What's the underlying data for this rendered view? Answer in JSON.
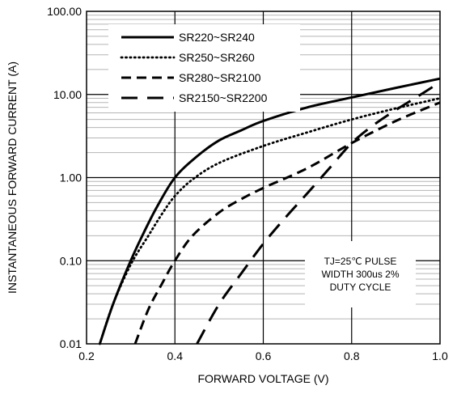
{
  "chart_data": {
    "type": "line",
    "title": "",
    "xlabel": "FORWARD VOLTAGE (V)",
    "ylabel": "INSTANTANEOUS FORWARD CURRENT (A)",
    "xlim": [
      0.2,
      1.0
    ],
    "ylim": [
      0.01,
      100
    ],
    "y_scale": "log",
    "grid": true,
    "x_ticks": [
      "0.2",
      "0.4",
      "0.6",
      "0.8",
      "1.0"
    ],
    "y_ticks": [
      "0.01",
      "0.10",
      "1.00",
      "10.00",
      "100.00"
    ],
    "legend_position": "top-left",
    "series": [
      {
        "name": "SR220~SR240",
        "style": "solid",
        "x": [
          0.23,
          0.26,
          0.3,
          0.33,
          0.36,
          0.4,
          0.45,
          0.5,
          0.55,
          0.6,
          0.7,
          0.8,
          0.9,
          1.0
        ],
        "y": [
          0.01,
          0.03,
          0.1,
          0.22,
          0.45,
          1.0,
          1.8,
          2.8,
          3.7,
          4.8,
          7.0,
          9.2,
          12.0,
          15.5
        ]
      },
      {
        "name": "SR250~SR260",
        "style": "dotted",
        "x": [
          0.23,
          0.26,
          0.3,
          0.34,
          0.37,
          0.4,
          0.44,
          0.5,
          0.6,
          0.7,
          0.8,
          0.9,
          1.0
        ],
        "y": [
          0.01,
          0.03,
          0.09,
          0.2,
          0.36,
          0.6,
          0.95,
          1.5,
          2.4,
          3.5,
          5.0,
          6.8,
          9.0
        ]
      },
      {
        "name": "SR280~SR2100",
        "style": "dashed",
        "x": [
          0.31,
          0.34,
          0.37,
          0.4,
          0.44,
          0.5,
          0.55,
          0.6,
          0.7,
          0.8,
          0.9,
          1.0
        ],
        "y": [
          0.01,
          0.026,
          0.052,
          0.1,
          0.2,
          0.38,
          0.55,
          0.75,
          1.3,
          2.6,
          4.8,
          8.0
        ]
      },
      {
        "name": "SR2150~SR2200",
        "style": "long-dashed",
        "x": [
          0.45,
          0.5,
          0.55,
          0.6,
          0.65,
          0.7,
          0.75,
          0.8,
          0.85,
          0.9,
          0.95,
          1.0
        ],
        "y": [
          0.01,
          0.03,
          0.07,
          0.16,
          0.33,
          0.65,
          1.3,
          2.6,
          4.3,
          6.5,
          9.5,
          14.0
        ]
      }
    ],
    "annotation": {
      "lines": [
        "TJ=25℃ PULSE",
        "WIDTH 300us 2%",
        "DUTY CYCLE"
      ]
    }
  }
}
